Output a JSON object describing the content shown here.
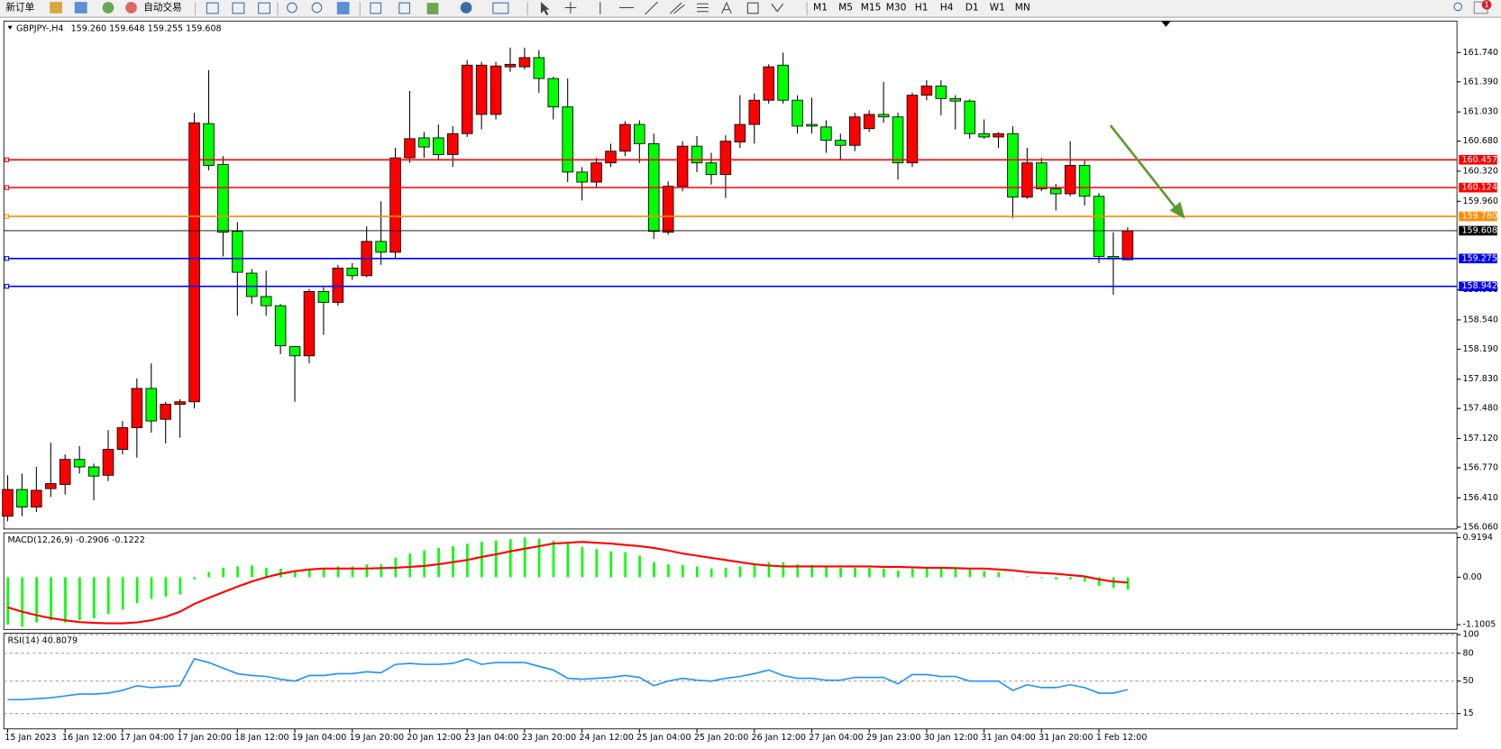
{
  "toolbar": {
    "new_order": "新订单",
    "auto_trading": "自动交易",
    "timeframes": [
      "M1",
      "M5",
      "M15",
      "M30",
      "H1",
      "H4",
      "D1",
      "W1",
      "MN"
    ],
    "alerts": 1
  },
  "chart_data": [
    {
      "type": "candlestick",
      "title": "GBPJPY-,H4",
      "subtitle": "159.260 159.648 159.255 159.608",
      "categories": [
        "15 Jan 2023",
        null,
        null,
        null,
        "16 Jan 12:00",
        null,
        null,
        null,
        "17 Jan 04:00",
        null,
        null,
        null,
        "17 Jan 20:00",
        null,
        null,
        null,
        "18 Jan 12:00",
        null,
        null,
        null,
        "19 Jan 04:00",
        null,
        null,
        null,
        "19 Jan 20:00",
        null,
        null,
        null,
        "20 Jan 12:00",
        null,
        null,
        null,
        "23 Jan 04:00",
        null,
        null,
        null,
        "23 Jan 20:00",
        null,
        null,
        null,
        "24 Jan 12:00",
        null,
        null,
        null,
        "25 Jan 04:00",
        null,
        null,
        null,
        "25 Jan 20:00",
        null,
        null,
        null,
        "26 Jan 12:00",
        null,
        null,
        null,
        "27 Jan 04:00",
        null,
        null,
        null,
        "29 Jan 23:00",
        null,
        null,
        null,
        "30 Jan 12:00",
        null,
        null,
        null,
        "31 Jan 04:00",
        null,
        null,
        null,
        "31 Jan 20:00",
        null,
        null,
        null,
        "1 Feb 12:00",
        null,
        null
      ],
      "open": [
        156.19,
        156.51,
        156.3,
        156.52,
        156.57,
        156.87,
        156.78,
        156.68,
        156.99,
        157.25,
        157.72,
        157.35,
        157.53,
        157.56,
        160.89,
        160.4,
        159.6,
        159.1,
        158.82,
        158.71,
        158.22,
        158.11,
        158.88,
        158.75,
        159.16,
        159.07,
        159.48,
        159.35,
        160.48,
        160.72,
        160.72,
        160.52,
        160.77,
        161.0,
        161.0,
        161.57,
        161.57,
        161.68,
        161.43,
        161.09,
        160.31,
        160.19,
        160.42,
        160.56,
        160.88,
        160.65,
        159.59,
        160.14,
        160.62,
        160.42,
        160.28,
        160.67,
        160.88,
        161.17,
        161.59,
        161.17,
        160.88,
        160.85,
        160.69,
        160.63,
        160.83,
        161.0,
        160.97,
        160.42,
        161.23,
        161.34,
        161.19,
        161.16,
        160.77,
        160.73,
        160.77,
        160.01,
        160.42,
        160.11,
        160.05,
        160.39,
        160.02,
        159.3,
        159.26
      ],
      "high": [
        156.68,
        156.7,
        156.78,
        157.07,
        156.93,
        157.03,
        156.82,
        157.22,
        157.33,
        157.84,
        158.02,
        157.56,
        157.59,
        161.02,
        161.53,
        160.5,
        159.71,
        159.15,
        159.13,
        158.73,
        158.23,
        158.91,
        158.93,
        159.2,
        159.22,
        159.66,
        159.96,
        160.6,
        161.28,
        160.79,
        160.88,
        160.86,
        161.65,
        161.63,
        161.63,
        161.8,
        161.8,
        161.77,
        161.45,
        161.43,
        160.37,
        160.48,
        160.65,
        160.92,
        160.93,
        160.77,
        160.2,
        160.68,
        160.74,
        160.54,
        160.75,
        161.23,
        161.25,
        161.6,
        161.74,
        161.23,
        161.2,
        160.93,
        160.77,
        161.02,
        161.05,
        161.39,
        161.02,
        161.26,
        161.41,
        161.41,
        161.23,
        161.18,
        160.94,
        160.79,
        160.86,
        160.6,
        160.48,
        160.17,
        160.68,
        160.45,
        160.06,
        159.59,
        159.648
      ],
      "low": [
        156.13,
        156.19,
        156.24,
        156.42,
        156.45,
        156.7,
        156.38,
        156.61,
        156.93,
        156.89,
        157.19,
        157.06,
        157.13,
        157.48,
        160.33,
        159.3,
        158.59,
        158.73,
        158.59,
        158.13,
        157.56,
        158.02,
        158.36,
        158.71,
        159.02,
        159.05,
        159.2,
        159.28,
        160.42,
        160.48,
        160.45,
        160.37,
        160.73,
        160.82,
        160.94,
        161.51,
        161.54,
        161.26,
        160.94,
        160.19,
        159.97,
        160.12,
        160.37,
        160.5,
        160.42,
        159.51,
        159.56,
        160.08,
        160.31,
        160.16,
        160.0,
        160.6,
        160.65,
        161.13,
        161.13,
        160.77,
        160.77,
        160.54,
        160.45,
        160.56,
        160.79,
        160.9,
        160.22,
        160.37,
        161.17,
        160.99,
        160.82,
        160.71,
        160.71,
        160.6,
        159.76,
        159.99,
        160.08,
        159.85,
        160.02,
        159.91,
        159.22,
        158.84,
        159.255
      ],
      "close": [
        156.51,
        156.3,
        156.5,
        156.58,
        156.87,
        156.78,
        156.67,
        156.99,
        157.25,
        157.72,
        157.33,
        157.53,
        157.56,
        160.9,
        160.39,
        159.59,
        159.11,
        158.82,
        158.71,
        158.23,
        158.11,
        158.88,
        158.75,
        159.16,
        159.07,
        159.48,
        159.35,
        160.48,
        160.71,
        160.61,
        160.52,
        160.77,
        161.59,
        161.59,
        161.58,
        161.6,
        161.68,
        161.43,
        161.09,
        160.31,
        160.19,
        160.42,
        160.56,
        160.88,
        160.65,
        159.6,
        160.14,
        160.62,
        160.42,
        160.28,
        160.68,
        160.88,
        161.17,
        161.57,
        161.17,
        160.86,
        160.86,
        160.69,
        160.63,
        160.97,
        161.0,
        160.97,
        160.42,
        161.23,
        161.34,
        161.19,
        161.16,
        160.77,
        160.73,
        160.77,
        160.01,
        160.42,
        160.11,
        160.05,
        160.39,
        160.02,
        159.3,
        159.27,
        159.608
      ],
      "up_color": "#ff0000",
      "down_color": "#00ff00",
      "ylim": [
        156.037,
        162.118
      ],
      "yticks": [
        {
          "value": 161.74,
          "label": "161.740"
        },
        {
          "value": 161.39,
          "label": "161.390"
        },
        {
          "value": 161.03,
          "label": "161.030"
        },
        {
          "value": 160.68,
          "label": "160.680"
        },
        {
          "value": 160.32,
          "label": "160.320"
        },
        {
          "value": 159.96,
          "label": "159.960"
        },
        {
          "value": 158.9,
          "label": "158.900"
        },
        {
          "value": 158.54,
          "label": "158.540"
        },
        {
          "value": 158.19,
          "label": "158.190"
        },
        {
          "value": 157.83,
          "label": "157.830"
        },
        {
          "value": 157.48,
          "label": "157.480"
        },
        {
          "value": 157.12,
          "label": "157.120"
        },
        {
          "value": 156.77,
          "label": "156.770"
        },
        {
          "value": 156.41,
          "label": "156.410"
        },
        {
          "value": 156.06,
          "label": "156.060"
        }
      ],
      "levels": {
        "values": [
          160.457,
          160.124,
          159.78,
          159.608,
          159.275,
          158.942
        ],
        "value_labels": [
          "160.457",
          "160.124",
          "159.780",
          "159.608",
          "159.275",
          "158.942"
        ],
        "colors": [
          "#ff0000",
          "#ff0000",
          "#ff8c00",
          "#000000",
          "#0000ff",
          "#0000ff"
        ]
      }
    },
    {
      "type": "macd",
      "title": "MACD(12,26,9) -0.2906 -0.1222",
      "series": [
        {
          "type": "bar",
          "color": "#00ff00",
          "values": [
            -1.1,
            -1.15,
            -1.05,
            -1.0,
            -1.05,
            -1.0,
            -0.95,
            -0.85,
            -0.75,
            -0.6,
            -0.5,
            -0.45,
            -0.4,
            -0.05,
            0.12,
            0.22,
            0.25,
            0.27,
            0.22,
            0.2,
            0.12,
            0.2,
            0.2,
            0.25,
            0.25,
            0.3,
            0.3,
            0.45,
            0.55,
            0.62,
            0.68,
            0.72,
            0.78,
            0.82,
            0.85,
            0.88,
            0.92,
            0.9,
            0.85,
            0.78,
            0.7,
            0.65,
            0.6,
            0.58,
            0.5,
            0.35,
            0.3,
            0.28,
            0.25,
            0.2,
            0.22,
            0.25,
            0.28,
            0.35,
            0.35,
            0.3,
            0.28,
            0.25,
            0.22,
            0.22,
            0.22,
            0.2,
            0.15,
            0.2,
            0.22,
            0.22,
            0.2,
            0.18,
            0.15,
            0.12,
            0.0,
            0.02,
            -0.02,
            -0.05,
            -0.05,
            -0.1,
            -0.2,
            -0.25,
            -0.2906
          ]
        },
        {
          "type": "line",
          "color": "#ff0000",
          "values": [
            -0.7,
            -0.8,
            -0.88,
            -0.95,
            -1.0,
            -1.04,
            -1.06,
            -1.07,
            -1.07,
            -1.05,
            -1.0,
            -0.92,
            -0.8,
            -0.62,
            -0.48,
            -0.35,
            -0.22,
            -0.1,
            0.0,
            0.08,
            0.14,
            0.18,
            0.2,
            0.2,
            0.2,
            0.2,
            0.21,
            0.22,
            0.24,
            0.26,
            0.3,
            0.35,
            0.4,
            0.47,
            0.53,
            0.6,
            0.66,
            0.72,
            0.78,
            0.8,
            0.82,
            0.8,
            0.78,
            0.75,
            0.72,
            0.68,
            0.62,
            0.55,
            0.5,
            0.45,
            0.4,
            0.35,
            0.3,
            0.27,
            0.25,
            0.25,
            0.25,
            0.25,
            0.25,
            0.25,
            0.25,
            0.24,
            0.24,
            0.23,
            0.22,
            0.22,
            0.21,
            0.2,
            0.2,
            0.18,
            0.16,
            0.12,
            0.1,
            0.08,
            0.05,
            0.02,
            -0.05,
            -0.1,
            -0.1222
          ]
        }
      ],
      "ylim": [
        -1.2115,
        1.0304
      ],
      "yticks": [
        0.9194,
        {
          "value": 0,
          "label": "0.00"
        },
        -1.1005
      ]
    },
    {
      "type": "line",
      "title": "RSI(14) 40.8079",
      "series": [
        {
          "color": "#1e90ff",
          "values": [
            30,
            30,
            31,
            32,
            34,
            36,
            36,
            37,
            40,
            45,
            43,
            44,
            45,
            74,
            70,
            64,
            58,
            56,
            55,
            52,
            50,
            56,
            56,
            58,
            58,
            60,
            59,
            68,
            69,
            68,
            68,
            69,
            74,
            68,
            70,
            70,
            70,
            66,
            62,
            53,
            52,
            53,
            54,
            56,
            54,
            45,
            50,
            53,
            51,
            50,
            53,
            55,
            58,
            62,
            56,
            53,
            53,
            51,
            51,
            54,
            54,
            54,
            47,
            57,
            57,
            55,
            55,
            50,
            50,
            50,
            40,
            46,
            43,
            43,
            46,
            43,
            37,
            37,
            40.8079
          ]
        }
      ],
      "ylim": [
        0,
        100
      ],
      "yticks": [
        100,
        80,
        50,
        15
      ],
      "grid": true
    }
  ]
}
